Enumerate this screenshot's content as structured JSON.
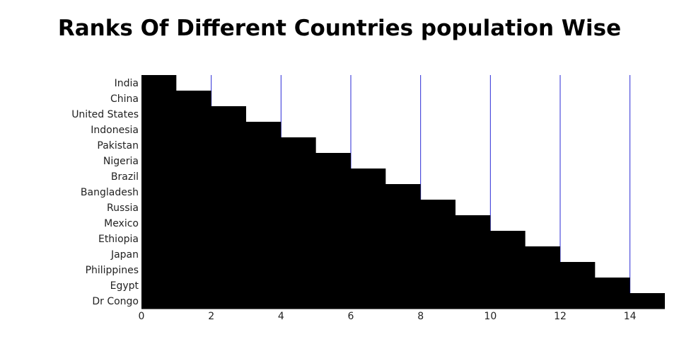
{
  "chart_data": {
    "type": "bar",
    "orientation": "horizontal",
    "title": "Ranks Of Different Countries population Wise",
    "xlabel": "",
    "ylabel": "",
    "categories": [
      "India",
      "China",
      "United States",
      "Indonesia",
      "Pakistan",
      "Nigeria",
      "Brazil",
      "Bangladesh",
      "Russia",
      "Mexico",
      "Ethiopia",
      "Japan",
      "Philippines",
      "Egypt",
      "Dr Congo"
    ],
    "values": [
      1,
      2,
      3,
      4,
      5,
      6,
      7,
      8,
      9,
      10,
      11,
      12,
      13,
      14,
      15
    ],
    "xlim": [
      0,
      15
    ],
    "x_ticks": [
      0,
      2,
      4,
      6,
      8,
      10,
      12,
      14
    ],
    "bar_color": "#000000",
    "grid": true,
    "grid_color": "#2a2ad6",
    "legend": "none"
  }
}
